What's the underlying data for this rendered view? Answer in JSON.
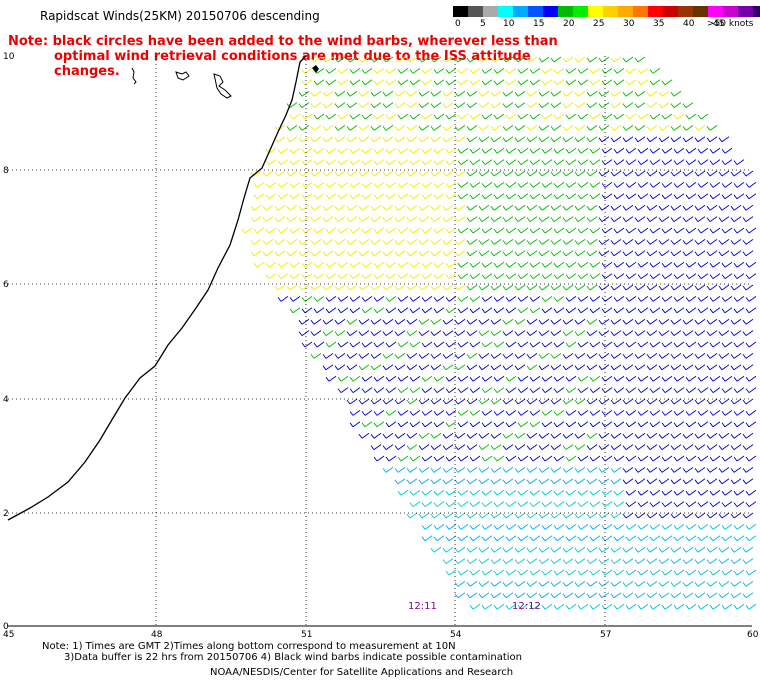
{
  "title": "Rapidscat Winds(25KM) 20150706 descending",
  "note": {
    "line1": "Note: black circles have been added to the wind barbs, wherever less than",
    "line2": "optimal wind retrieval conditions are met due to the ISS attitude changes."
  },
  "legend": {
    "colors": [
      "#000000",
      "#555555",
      "#aaaaaa",
      "#00ffff",
      "#00aaff",
      "#0055ff",
      "#0000ff",
      "#00bb00",
      "#00ee00",
      "#ffff00",
      "#ffd000",
      "#ffaa00",
      "#ff7700",
      "#ff0000",
      "#cc0000",
      "#993300",
      "#663300",
      "#ff00ff",
      "#cc00cc",
      "#7700aa",
      "#330066"
    ],
    "labels": [
      "0",
      "5",
      "10",
      "15",
      "20",
      "25",
      "30",
      "35",
      "40",
      "45",
      ">50 knots"
    ]
  },
  "axes": {
    "x_ticks": [
      "45",
      "48",
      "51",
      "54",
      "57",
      "60"
    ],
    "y_ticks": [
      "0",
      "2",
      "4",
      "6",
      "8",
      "10"
    ]
  },
  "time_labels": [
    "12:11",
    "12:12"
  ],
  "colors": {
    "note": "#ee0000",
    "time_label": "#880088",
    "coast": "#000000"
  },
  "footer": {
    "line1": "Note: 1) Times are GMT 2)Times along bottom correspond to measurement at 10N",
    "line2": "3)Data buffer is 22 hrs from 20150706 4) Black wind barbs indicate possible contamination",
    "line3": "NOAA/NESDIS/Center for Satellite Applications and Research"
  }
}
